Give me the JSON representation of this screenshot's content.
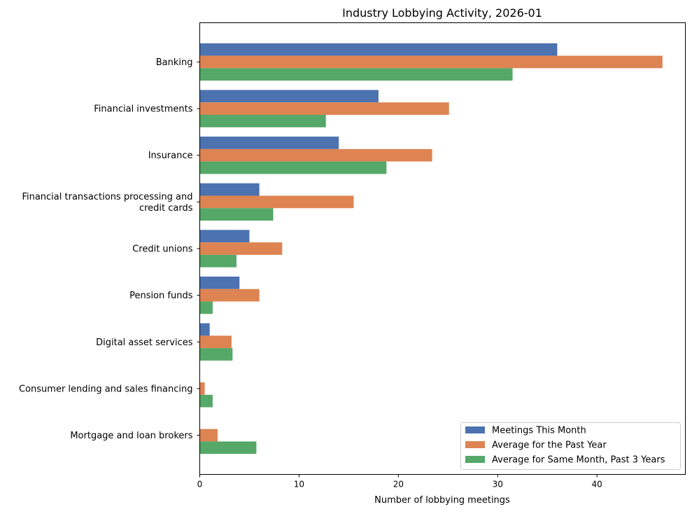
{
  "chart_data": {
    "type": "bar",
    "orientation": "horizontal",
    "title": "Industry Lobbying Activity, 2026-01",
    "xlabel": "Number of lobbying meetings",
    "ylabel": "",
    "xlim": [
      0,
      48.9
    ],
    "xticks": [
      0,
      10,
      20,
      30,
      40
    ],
    "grid": false,
    "legend_position": "lower-right",
    "categories": [
      [
        "Banking"
      ],
      [
        "Financial investments"
      ],
      [
        "Insurance"
      ],
      [
        "Financial transactions processing and",
        "credit cards"
      ],
      [
        "Credit unions"
      ],
      [
        "Pension funds"
      ],
      [
        "Digital asset services"
      ],
      [
        "Consumer lending and sales financing"
      ],
      [
        "Mortgage and loan brokers"
      ]
    ],
    "series": [
      {
        "name": "Meetings This Month",
        "color": "#4c72b0",
        "values": [
          36,
          18,
          14,
          6,
          5,
          4,
          1,
          0,
          0
        ]
      },
      {
        "name": "Average for the Past Year",
        "color": "#dd8452",
        "values": [
          46.6,
          25.1,
          23.4,
          15.5,
          8.3,
          6,
          3.2,
          0.5,
          1.8
        ]
      },
      {
        "name": "Average for Same Month, Past 3 Years",
        "color": "#55a868",
        "values": [
          31.5,
          12.7,
          18.8,
          7.4,
          3.7,
          1.3,
          3.3,
          1.3,
          5.7
        ]
      }
    ]
  }
}
